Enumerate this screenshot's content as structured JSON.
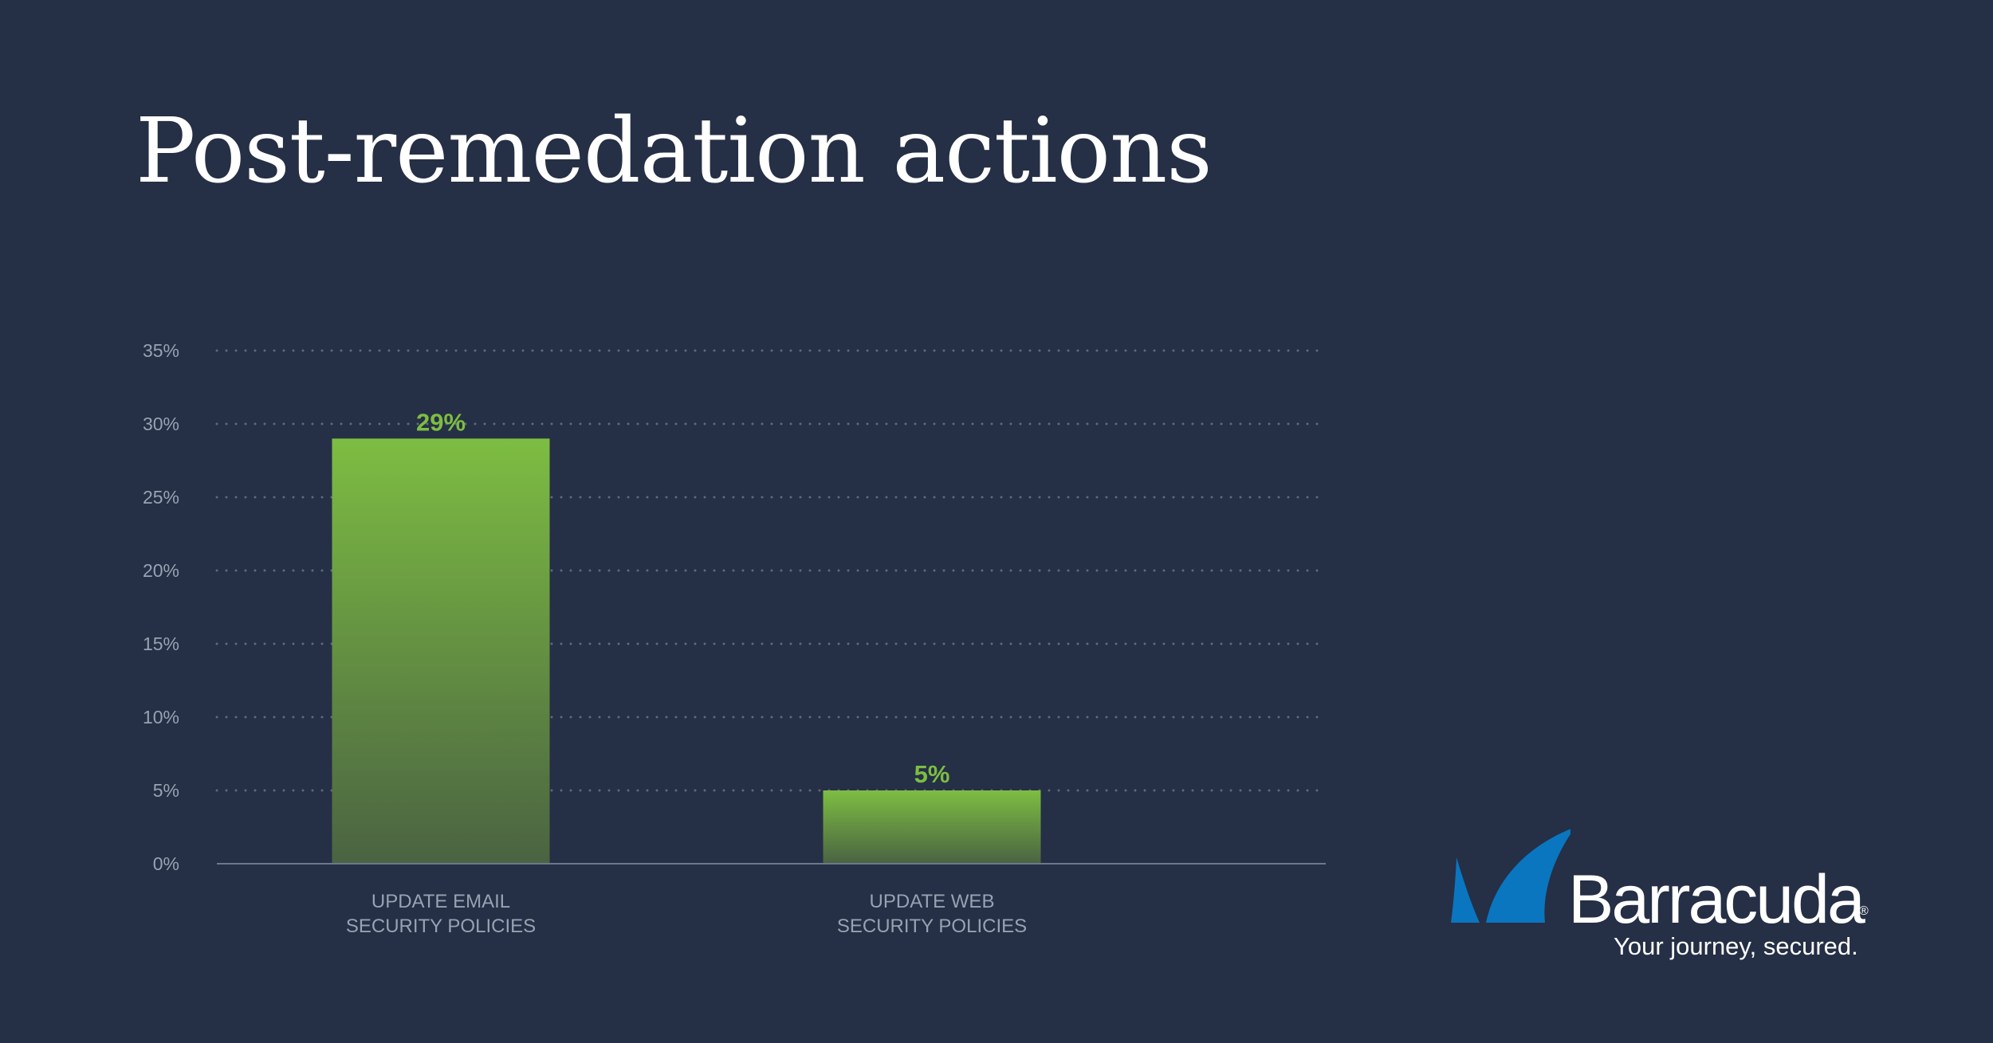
{
  "title": "Post-remedation actions",
  "colors": {
    "background": "#252f45",
    "bar_top": "#7dbd42",
    "bar_bottom": "#4a6342",
    "label_green": "#7dbd42",
    "grid": "#5d6a80",
    "axis_text": "#98a2b3",
    "logo_blue": "#0a76c0"
  },
  "chart_data": {
    "type": "bar",
    "title": "",
    "xlabel": "",
    "ylabel": "",
    "categories": [
      [
        "UPDATE EMAIL",
        "SECURITY POLICIES"
      ],
      [
        "UPDATE WEB",
        "SECURITY POLICIES"
      ]
    ],
    "values": [
      29,
      5
    ],
    "data_labels": [
      "29%",
      "5%"
    ],
    "ylim": [
      0,
      35
    ],
    "yticks": [
      0,
      5,
      10,
      15,
      20,
      25,
      30,
      35
    ],
    "ytick_labels": [
      "0%",
      "5%",
      "10%",
      "15%",
      "20%",
      "25%",
      "30%",
      "35%"
    ],
    "grid": true,
    "grid_style": "dotted"
  },
  "logo": {
    "wordmark": "Barracuda",
    "registered": "®",
    "tagline": "Your journey, secured.",
    "icon": "shark-fin-icon"
  }
}
